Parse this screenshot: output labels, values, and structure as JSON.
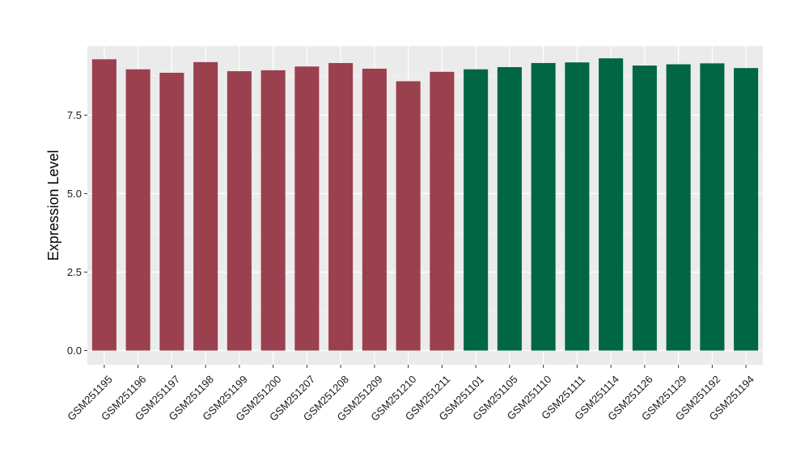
{
  "chart_data": {
    "type": "bar",
    "title": "",
    "xlabel": "",
    "ylabel": "Expression Level",
    "ylim": [
      -0.45,
      9.7
    ],
    "yticks": [
      0.0,
      2.5,
      5.0,
      7.5
    ],
    "ytick_labels": [
      "0.0",
      "2.5",
      "5.0",
      "7.5"
    ],
    "grid": true,
    "legend": "none",
    "categories": [
      "GSM251195",
      "GSM251196",
      "GSM251197",
      "GSM251198",
      "GSM251199",
      "GSM251200",
      "GSM251207",
      "GSM251208",
      "GSM251209",
      "GSM251210",
      "GSM251211",
      "GSM251101",
      "GSM251105",
      "GSM251110",
      "GSM251111",
      "GSM251114",
      "GSM251126",
      "GSM251129",
      "GSM251192",
      "GSM251194"
    ],
    "values": [
      9.28,
      8.96,
      8.85,
      9.19,
      8.9,
      8.93,
      9.05,
      9.16,
      8.98,
      8.58,
      8.88,
      8.96,
      9.03,
      9.16,
      9.18,
      9.31,
      9.08,
      9.12,
      9.15,
      9.0
    ],
    "groups": [
      0,
      0,
      0,
      0,
      0,
      0,
      0,
      0,
      0,
      0,
      0,
      1,
      1,
      1,
      1,
      1,
      1,
      1,
      1,
      1
    ],
    "colors": {
      "group_0": "#9a404f",
      "group_1": "#006644",
      "panel_background": "#ebebeb",
      "grid_major": "#ffffff",
      "grid_minor": "#f4f4f4"
    }
  }
}
